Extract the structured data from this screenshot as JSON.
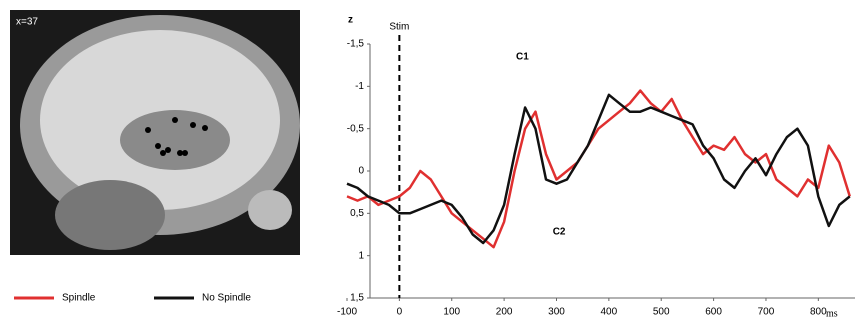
{
  "image": {
    "label": "x=37"
  },
  "chart_data": {
    "type": "line",
    "ylabel": "z",
    "xlabel": "ms",
    "annotations": {
      "stim": "Stim",
      "c1": "C1",
      "c2": "C2"
    },
    "x": [
      -100,
      -80,
      -60,
      -40,
      -20,
      0,
      20,
      40,
      60,
      80,
      100,
      120,
      140,
      160,
      180,
      200,
      220,
      240,
      260,
      280,
      300,
      320,
      340,
      360,
      380,
      400,
      420,
      440,
      460,
      480,
      500,
      520,
      540,
      560,
      580,
      600,
      620,
      640,
      660,
      680,
      700,
      720,
      740,
      760,
      780,
      800,
      820,
      840,
      860
    ],
    "series": [
      {
        "name": "Spindle",
        "color": "#e03030",
        "values": [
          0.3,
          0.35,
          0.3,
          0.4,
          0.35,
          0.3,
          0.2,
          0.0,
          0.1,
          0.3,
          0.5,
          0.6,
          0.7,
          0.8,
          0.9,
          0.6,
          0.0,
          -0.5,
          -0.7,
          -0.2,
          0.1,
          0.0,
          -0.1,
          -0.3,
          -0.5,
          -0.6,
          -0.7,
          -0.8,
          -0.95,
          -0.8,
          -0.7,
          -0.85,
          -0.6,
          -0.4,
          -0.2,
          -0.3,
          -0.25,
          -0.4,
          -0.2,
          -0.1,
          -0.2,
          0.1,
          0.2,
          0.3,
          0.1,
          0.2,
          -0.3,
          -0.1,
          0.3
        ]
      },
      {
        "name": "No Spindle",
        "color": "#111111",
        "values": [
          0.15,
          0.2,
          0.3,
          0.35,
          0.4,
          0.5,
          0.5,
          0.45,
          0.4,
          0.35,
          0.4,
          0.55,
          0.75,
          0.85,
          0.7,
          0.4,
          -0.2,
          -0.75,
          -0.5,
          0.1,
          0.15,
          0.1,
          -0.1,
          -0.3,
          -0.6,
          -0.9,
          -0.8,
          -0.7,
          -0.7,
          -0.75,
          -0.7,
          -0.65,
          -0.6,
          -0.55,
          -0.3,
          -0.15,
          0.1,
          0.2,
          0.0,
          -0.15,
          0.05,
          -0.2,
          -0.4,
          -0.5,
          -0.3,
          0.3,
          0.65,
          0.4,
          0.3
        ]
      }
    ],
    "xlim": [
      -100,
      870
    ],
    "xticks": [
      -100,
      0,
      100,
      200,
      300,
      400,
      500,
      600,
      700,
      800
    ],
    "ylim": [
      -1.5,
      1.5
    ],
    "y_reversed": true,
    "yticks": [
      {
        "value": -1.5,
        "label": "-1,5"
      },
      -1,
      {
        "value": -0.5,
        "label": "-0,5"
      },
      0,
      {
        "value": 0.5,
        "label": "0,5"
      },
      1,
      {
        "value": 1.5,
        "label": "1,5"
      }
    ],
    "stim_line_x": 0
  }
}
